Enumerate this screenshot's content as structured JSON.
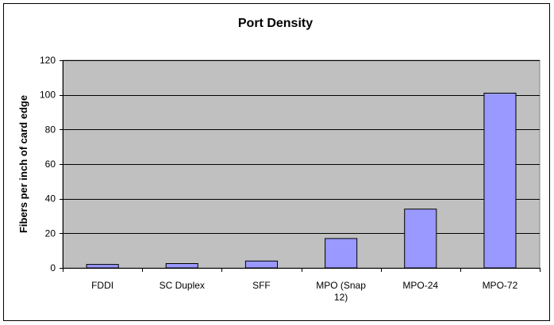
{
  "chart_data": {
    "type": "bar",
    "title": "Port Density",
    "xlabel": "",
    "ylabel": "Fibers per inch of card edge",
    "categories": [
      [
        "FDDI"
      ],
      [
        "SC Duplex"
      ],
      [
        "SFF"
      ],
      [
        "MPO (Snap",
        "12)"
      ],
      [
        "MPO-24"
      ],
      [
        "MPO-72"
      ]
    ],
    "values": [
      2,
      2.5,
      4,
      17,
      34,
      101
    ],
    "ylim": [
      0,
      120
    ],
    "yticks": [
      0,
      20,
      40,
      60,
      80,
      100,
      120
    ],
    "grid": true,
    "legend": "none",
    "colors": {
      "bar_fill": "#9999ff",
      "bar_stroke": "#000000",
      "plot_background": "#c0c0c0",
      "gridline": "#000000"
    }
  }
}
